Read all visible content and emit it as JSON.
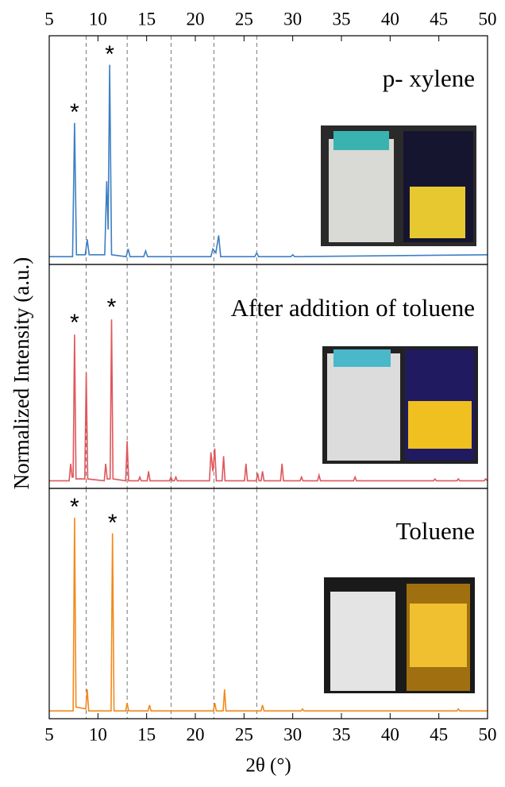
{
  "chart_data": [
    {
      "type": "line",
      "label": "p- xylene",
      "color": "#3d7fc4",
      "x": [
        5,
        7.4,
        7.6,
        7.8,
        8.7,
        8.9,
        9.1,
        10.7,
        10.9,
        11.05,
        11.2,
        11.4,
        12.9,
        13.1,
        13.3,
        14.7,
        14.9,
        15.1,
        21.6,
        21.8,
        22.1,
        22.4,
        22.6,
        26.1,
        26.3,
        26.5,
        29.8,
        30,
        30.2,
        50
      ],
      "values": [
        0.01,
        0.01,
        0.7,
        0.02,
        0.02,
        0.1,
        0.02,
        0.02,
        0.4,
        0.15,
        1.0,
        0.02,
        0.01,
        0.05,
        0.01,
        0.01,
        0.04,
        0.01,
        0.01,
        0.05,
        0.03,
        0.12,
        0.01,
        0.01,
        0.03,
        0.01,
        0.01,
        0.02,
        0.01,
        0.02
      ],
      "xlim": [
        5,
        50
      ],
      "ylim": [
        -0.03,
        1.15
      ],
      "xticks": [
        5,
        10,
        15,
        20,
        25,
        30,
        35,
        40,
        45,
        50
      ],
      "vlines": [
        8.8,
        13,
        17.5,
        21.9,
        26.3
      ],
      "annotations": [
        {
          "text": "*",
          "x": 7.6,
          "y": 0.78
        },
        {
          "text": "*",
          "x": 11.2,
          "y": 1.08
        }
      ]
    },
    {
      "type": "line",
      "label": "After addition of toluene",
      "color": "#e0575c",
      "ylabel": "Normalized Intensity (a.u.)",
      "x": [
        5,
        7.05,
        7.2,
        7.35,
        7.45,
        7.6,
        7.75,
        8.65,
        8.8,
        8.95,
        10.65,
        10.8,
        10.95,
        11.25,
        11.4,
        11.55,
        12.85,
        13,
        13.15,
        14.15,
        14.3,
        14.45,
        15.05,
        15.2,
        15.35,
        17.35,
        17.5,
        17.65,
        17.85,
        18,
        18.15,
        21.45,
        21.6,
        21.8,
        22,
        22.15,
        22.75,
        22.9,
        23.05,
        25.05,
        25.2,
        25.35,
        26.25,
        26.4,
        26.55,
        26.75,
        26.9,
        27.05,
        28.75,
        28.9,
        29.05,
        30.75,
        30.9,
        31.05,
        32.55,
        32.7,
        32.85,
        36.25,
        36.4,
        36.55,
        44.45,
        44.6,
        44.75,
        46.85,
        47,
        47.15,
        49.65,
        49.8,
        50
      ],
      "values": [
        0.01,
        0.01,
        0.1,
        0.03,
        0.03,
        0.78,
        0.02,
        0.02,
        0.58,
        0.02,
        0.01,
        0.1,
        0.02,
        0.02,
        0.86,
        0.02,
        0.01,
        0.22,
        0.01,
        0.01,
        0.03,
        0.01,
        0.01,
        0.06,
        0.01,
        0.01,
        0.03,
        0.01,
        0.01,
        0.03,
        0.01,
        0.01,
        0.16,
        0.06,
        0.18,
        0.01,
        0.01,
        0.14,
        0.01,
        0.01,
        0.1,
        0.01,
        0.01,
        0.05,
        0.01,
        0.01,
        0.06,
        0.01,
        0.01,
        0.1,
        0.01,
        0.01,
        0.03,
        0.01,
        0.01,
        0.04,
        0.01,
        0.01,
        0.03,
        0.01,
        0.01,
        0.02,
        0.01,
        0.01,
        0.02,
        0.01,
        0.01,
        0.02,
        0.01
      ],
      "xlim": [
        5,
        50
      ],
      "ylim": [
        -0.03,
        1.15
      ],
      "vlines": [
        8.8,
        13,
        17.5,
        21.9,
        26.3
      ],
      "annotations": [
        {
          "text": "*",
          "x": 7.6,
          "y": 0.87
        },
        {
          "text": "*",
          "x": 11.4,
          "y": 0.95
        }
      ]
    },
    {
      "type": "line",
      "label": "Toluene",
      "color": "#f28a1c",
      "xlabel": "2θ (°)",
      "x": [
        5,
        7.45,
        7.6,
        7.75,
        8.75,
        8.9,
        9.05,
        11.35,
        11.5,
        11.65,
        12.85,
        13,
        13.15,
        15.15,
        15.3,
        15.45,
        21.85,
        22,
        22.15,
        22.85,
        23,
        23.15,
        26.75,
        26.9,
        27.05,
        30.85,
        31,
        31.15,
        46.85,
        47,
        47.15,
        50
      ],
      "values": [
        0.01,
        0.01,
        1.0,
        0.03,
        0.02,
        0.12,
        0.01,
        0.01,
        0.92,
        0.01,
        0.01,
        0.05,
        0.01,
        0.01,
        0.04,
        0.01,
        0.01,
        0.05,
        0.01,
        0.01,
        0.12,
        0.01,
        0.01,
        0.04,
        0.01,
        0.01,
        0.02,
        0.01,
        0.01,
        0.02,
        0.01,
        0.01
      ],
      "xlim": [
        5,
        50
      ],
      "ylim": [
        -0.03,
        1.15
      ],
      "xticks": [
        5,
        10,
        15,
        20,
        25,
        30,
        35,
        40,
        45,
        50
      ],
      "vlines": [
        8.8,
        13,
        17.5,
        21.9,
        26.3
      ],
      "annotations": [
        {
          "text": "*",
          "x": 7.6,
          "y": 1.08
        },
        {
          "text": "*",
          "x": 11.5,
          "y": 1.0
        }
      ]
    }
  ]
}
